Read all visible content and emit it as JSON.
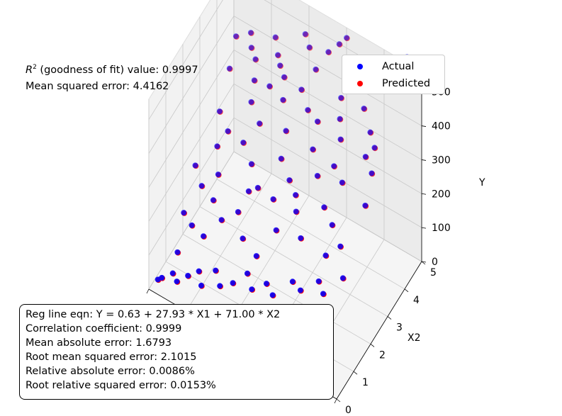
{
  "stats_top": {
    "r2_rest": " (goodness of fit) value: 0.9997",
    "mse": "Mean squared error: 4.4162"
  },
  "legend": {
    "actual": "Actual",
    "predicted": "Predicted",
    "actual_color": "#0000ff",
    "predicted_color": "#ff0000"
  },
  "stats_box": {
    "eqn": "Reg line eqn: Y = 0.63 + 27.93 * X1 + 71.00 * X2",
    "corr": "Correlation coefficient: 0.9999",
    "mae": "Mean absolute error: 1.6793",
    "rmse": "Root mean squared error: 2.1015",
    "rae": "Relative absolute error: 0.0086%",
    "rrse": "Root relative squared error: 0.0153%"
  },
  "chart_data": {
    "type": "scatter",
    "ylabel": "Y",
    "x2label": "X2",
    "y_ticks": [
      "0",
      "100",
      "200",
      "300",
      "400",
      "500"
    ],
    "x2_ticks": [
      "0",
      "1",
      "2",
      "3",
      "4",
      "5"
    ],
    "series": [
      {
        "name": "Actual",
        "color": "#0000ff"
      },
      {
        "name": "Predicted",
        "color": "#ff0000"
      }
    ],
    "points": [
      {
        "x1": 0.3,
        "x2": 0.2,
        "y": 22
      },
      {
        "x1": 0.6,
        "x2": 0.1,
        "y": 45
      },
      {
        "x1": 1.0,
        "x2": 0.3,
        "y": 55
      },
      {
        "x1": 1.4,
        "x2": 0.1,
        "y": 60
      },
      {
        "x1": 0.8,
        "x2": 0.8,
        "y": 70
      },
      {
        "x1": 1.9,
        "x2": 0.2,
        "y": 85
      },
      {
        "x1": 2.3,
        "x2": 0.4,
        "y": 95
      },
      {
        "x1": 2.7,
        "x2": 0.1,
        "y": 90
      },
      {
        "x1": 3.1,
        "x2": 0.5,
        "y": 115
      },
      {
        "x1": 3.6,
        "x2": 0.2,
        "y": 110
      },
      {
        "x1": 4.2,
        "x2": 0.3,
        "y": 130
      },
      {
        "x1": 4.7,
        "x2": 0.6,
        "y": 150
      },
      {
        "x1": 5.3,
        "x2": 0.2,
        "y": 155
      },
      {
        "x1": 5.9,
        "x2": 0.4,
        "y": 175
      },
      {
        "x1": 6.5,
        "x2": 0.1,
        "y": 185
      },
      {
        "x1": 7.2,
        "x2": 0.5,
        "y": 215
      },
      {
        "x1": 7.8,
        "x2": 0.3,
        "y": 225
      },
      {
        "x1": 8.5,
        "x2": 0.6,
        "y": 250
      },
      {
        "x1": 9.1,
        "x2": 0.2,
        "y": 265
      },
      {
        "x1": 9.7,
        "x2": 0.7,
        "y": 290
      },
      {
        "x1": 0.5,
        "x2": 1.5,
        "y": 120
      },
      {
        "x1": 1.2,
        "x2": 1.2,
        "y": 130
      },
      {
        "x1": 1.8,
        "x2": 1.8,
        "y": 175
      },
      {
        "x1": 2.6,
        "x2": 1.4,
        "y": 175
      },
      {
        "x1": 3.3,
        "x2": 1.6,
        "y": 205
      },
      {
        "x1": 4.0,
        "x2": 1.1,
        "y": 190
      },
      {
        "x1": 4.9,
        "x2": 1.9,
        "y": 270
      },
      {
        "x1": 5.6,
        "x2": 1.3,
        "y": 250
      },
      {
        "x1": 6.3,
        "x2": 1.7,
        "y": 295
      },
      {
        "x1": 7.0,
        "x2": 1.2,
        "y": 280
      },
      {
        "x1": 7.7,
        "x2": 1.8,
        "y": 345
      },
      {
        "x1": 8.4,
        "x2": 1.5,
        "y": 340
      },
      {
        "x1": 9.2,
        "x2": 1.1,
        "y": 335
      },
      {
        "x1": 9.8,
        "x2": 1.9,
        "y": 410
      },
      {
        "x1": 0.3,
        "x2": 2.4,
        "y": 180
      },
      {
        "x1": 1.1,
        "x2": 2.8,
        "y": 230
      },
      {
        "x1": 1.7,
        "x2": 2.2,
        "y": 215
      },
      {
        "x1": 2.4,
        "x2": 2.9,
        "y": 275
      },
      {
        "x1": 3.2,
        "x2": 2.5,
        "y": 270
      },
      {
        "x1": 3.9,
        "x2": 2.1,
        "y": 255
      },
      {
        "x1": 4.6,
        "x2": 2.7,
        "y": 315
      },
      {
        "x1": 5.4,
        "x2": 2.3,
        "y": 310
      },
      {
        "x1": 6.1,
        "x2": 2.9,
        "y": 375
      },
      {
        "x1": 6.8,
        "x2": 2.4,
        "y": 360
      },
      {
        "x1": 7.5,
        "x2": 2.6,
        "y": 395
      },
      {
        "x1": 8.3,
        "x2": 2.2,
        "y": 405
      },
      {
        "x1": 9.0,
        "x2": 2.8,
        "y": 455
      },
      {
        "x1": 9.6,
        "x2": 2.5,
        "y": 450
      },
      {
        "x1": 0.6,
        "x2": 3.5,
        "y": 260
      },
      {
        "x1": 1.4,
        "x2": 3.1,
        "y": 260
      },
      {
        "x1": 2.1,
        "x2": 3.7,
        "y": 320
      },
      {
        "x1": 2.9,
        "x2": 3.3,
        "y": 315
      },
      {
        "x1": 3.7,
        "x2": 3.8,
        "y": 370
      },
      {
        "x1": 4.4,
        "x2": 3.2,
        "y": 350
      },
      {
        "x1": 5.2,
        "x2": 3.6,
        "y": 405
      },
      {
        "x1": 5.9,
        "x2": 3.4,
        "y": 410
      },
      {
        "x1": 6.7,
        "x2": 3.9,
        "y": 465
      },
      {
        "x1": 7.4,
        "x2": 3.1,
        "y": 430
      },
      {
        "x1": 8.1,
        "x2": 3.7,
        "y": 495
      },
      {
        "x1": 8.8,
        "x2": 3.3,
        "y": 480
      },
      {
        "x1": 0.4,
        "x2": 4.3,
        "y": 315
      },
      {
        "x1": 1.2,
        "x2": 4.7,
        "y": 370
      },
      {
        "x1": 1.9,
        "x2": 4.1,
        "y": 345
      },
      {
        "x1": 2.7,
        "x2": 4.6,
        "y": 405
      },
      {
        "x1": 3.4,
        "x2": 4.2,
        "y": 395
      },
      {
        "x1": 4.2,
        "x2": 4.8,
        "y": 460
      },
      {
        "x1": 4.9,
        "x2": 4.4,
        "y": 450
      },
      {
        "x1": 5.7,
        "x2": 4.9,
        "y": 510
      },
      {
        "x1": 6.4,
        "x2": 4.5,
        "y": 500
      },
      {
        "x1": 7.1,
        "x2": 4.2,
        "y": 495
      },
      {
        "x1": 0.2,
        "x2": 4.9,
        "y": 355
      },
      {
        "x1": 0.9,
        "x2": 5.0,
        "y": 380
      },
      {
        "x1": 1.6,
        "x2": 4.5,
        "y": 365
      },
      {
        "x1": 2.3,
        "x2": 4.9,
        "y": 420
      },
      {
        "x1": 3.0,
        "x2": 4.4,
        "y": 400
      },
      {
        "x1": 3.8,
        "x2": 5.0,
        "y": 470
      },
      {
        "x1": 5.3,
        "x2": 4.7,
        "y": 490
      },
      {
        "x1": 6.0,
        "x2": 5.0,
        "y": 530
      },
      {
        "x1": 8.0,
        "x2": 4.6,
        "y": 560
      },
      {
        "x1": 9.4,
        "x2": 4.8,
        "y": 600
      },
      {
        "x1": 2.0,
        "x2": 1.0,
        "y": 140
      },
      {
        "x1": 5.0,
        "x2": 0.8,
        "y": 195
      },
      {
        "x1": 6.0,
        "x2": 2.0,
        "y": 310
      },
      {
        "x1": 8.6,
        "x2": 0.9,
        "y": 305
      },
      {
        "x1": 9.3,
        "x2": 3.0,
        "y": 475
      },
      {
        "x1": 3.5,
        "x2": 2.0,
        "y": 240
      },
      {
        "x1": 7.0,
        "x2": 3.5,
        "y": 445
      },
      {
        "x1": 4.5,
        "x2": 4.0,
        "y": 410
      },
      {
        "x1": 1.0,
        "x2": 2.0,
        "y": 175
      },
      {
        "x1": 2.8,
        "x2": 4.0,
        "y": 365
      }
    ],
    "ranges": {
      "x1": [
        0,
        10
      ],
      "x2": [
        0,
        5
      ],
      "y": [
        0,
        560
      ]
    },
    "grid": true,
    "legend_position": "top-right"
  }
}
